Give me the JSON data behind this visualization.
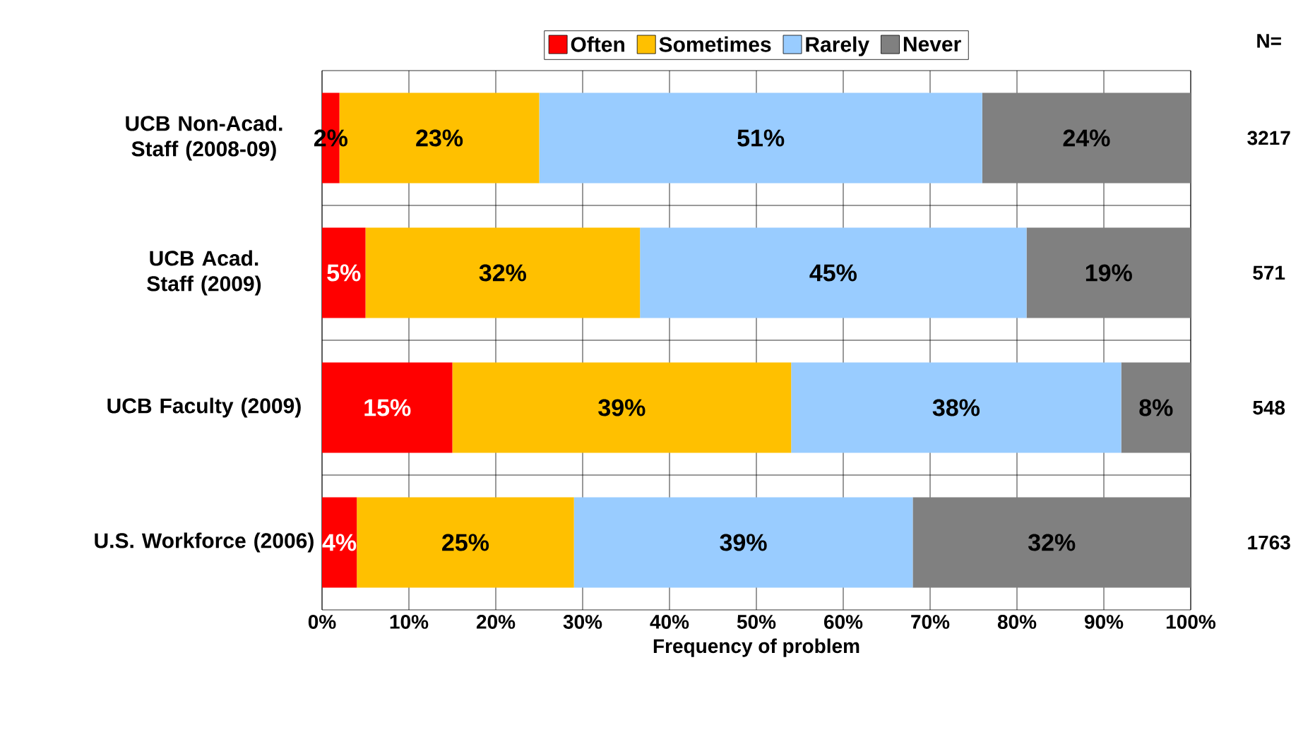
{
  "chart_data": {
    "type": "bar",
    "orientation": "horizontal",
    "stacked": true,
    "xlabel": "Frequency of problem",
    "categories": [
      "UCB Non-Acad. Staff (2008-09)",
      "UCB Acad. Staff (2009)",
      "UCB Faculty (2009)",
      "U.S. Workforce (2006)"
    ],
    "series": [
      {
        "name": "Often",
        "color": "#ff0000",
        "values": [
          2,
          5,
          15,
          4
        ],
        "value_labels": [
          "2%",
          "5%",
          "15%",
          "4%"
        ]
      },
      {
        "name": "Sometimes",
        "color": "#ffc000",
        "values": [
          23,
          31.6,
          39,
          25
        ],
        "value_labels": [
          "23%",
          "32%",
          "39%",
          "25%"
        ]
      },
      {
        "name": "Rarely",
        "color": "#99ccff",
        "values": [
          51,
          44.5,
          38,
          39
        ],
        "value_labels": [
          "51%",
          "45%",
          "38%",
          "39%"
        ]
      },
      {
        "name": "Never",
        "color": "#808080",
        "values": [
          24,
          18.9,
          8,
          32
        ],
        "value_labels": [
          "24%",
          "19%",
          "8%",
          "32%"
        ]
      }
    ],
    "xlim": [
      0,
      100
    ],
    "xticks": [
      {
        "value": 0,
        "label": "0%"
      },
      {
        "value": 10,
        "label": "10%"
      },
      {
        "value": 20,
        "label": "20%"
      },
      {
        "value": 30,
        "label": "30%"
      },
      {
        "value": 40,
        "label": "40%"
      },
      {
        "value": 50,
        "label": "50%"
      },
      {
        "value": 60,
        "label": "60%"
      },
      {
        "value": 70,
        "label": "70%"
      },
      {
        "value": 80,
        "label": "80%"
      },
      {
        "value": 90,
        "label": "90%"
      },
      {
        "value": 100,
        "label": "100%"
      }
    ],
    "grid": true,
    "legend": "top",
    "annotations": [
      "N=",
      "3217",
      "571",
      "548",
      "1763"
    ]
  }
}
